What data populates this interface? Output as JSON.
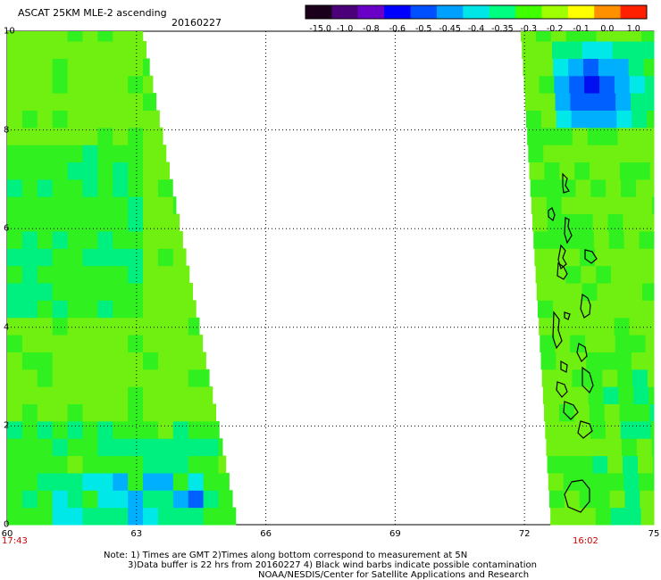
{
  "title": "ASCAT 25KM MLE-2 ascending",
  "date": "20160227",
  "colorbar": {
    "labels": [
      "-15.0",
      "-1.0",
      "-0.8",
      "-0.6",
      "-0.5",
      "-0.45",
      "-0.4",
      "-0.35",
      "-0.3",
      "-0.2",
      "-0.1",
      "0.0",
      "1.0"
    ],
    "colors": [
      "#1a001a",
      "#4b007a",
      "#6a00c8",
      "#0000ff",
      "#0050ff",
      "#00a0ff",
      "#00e6e6",
      "#00ff80",
      "#40ff00",
      "#a0ff00",
      "#ffff00",
      "#ff9000",
      "#ff2000"
    ]
  },
  "chart_data": {
    "type": "heatmap",
    "xlabel": "",
    "ylabel": "",
    "x_ticks": [
      "60",
      "63",
      "66",
      "69",
      "72",
      "75"
    ],
    "y_ticks": [
      "0",
      "2",
      "4",
      "6",
      "8",
      "10"
    ],
    "xlim": [
      60,
      75
    ],
    "ylim": [
      0,
      10
    ],
    "grid": true,
    "swaths": [
      {
        "name": "west",
        "time": "17:43",
        "lon_min": 60.0,
        "lon_right_bottom": 65.3,
        "lon_right_top": 63.1,
        "typical_value": -0.25
      },
      {
        "name": "east",
        "time": "16:02",
        "lon_left_bottom": 72.6,
        "lon_left_top": 71.9,
        "lon_max": 75.0,
        "typical_value": -0.25,
        "low_region": {
          "lon": [
            72.9,
            73.8
          ],
          "lat": [
            7.8,
            9.7
          ],
          "min_value": -0.6
        }
      }
    ]
  },
  "time_labels": {
    "left": "17:43",
    "right": "16:02"
  },
  "notes": [
    "Note: 1) Times are GMT 2)Times along bottom correspond to measurement at 5N",
    "3)Data buffer is 22 hrs from 20160227 4) Black wind barbs indicate possible contamination",
    "NOAA/NESDIS/Center for Satellite Applications and Research"
  ]
}
